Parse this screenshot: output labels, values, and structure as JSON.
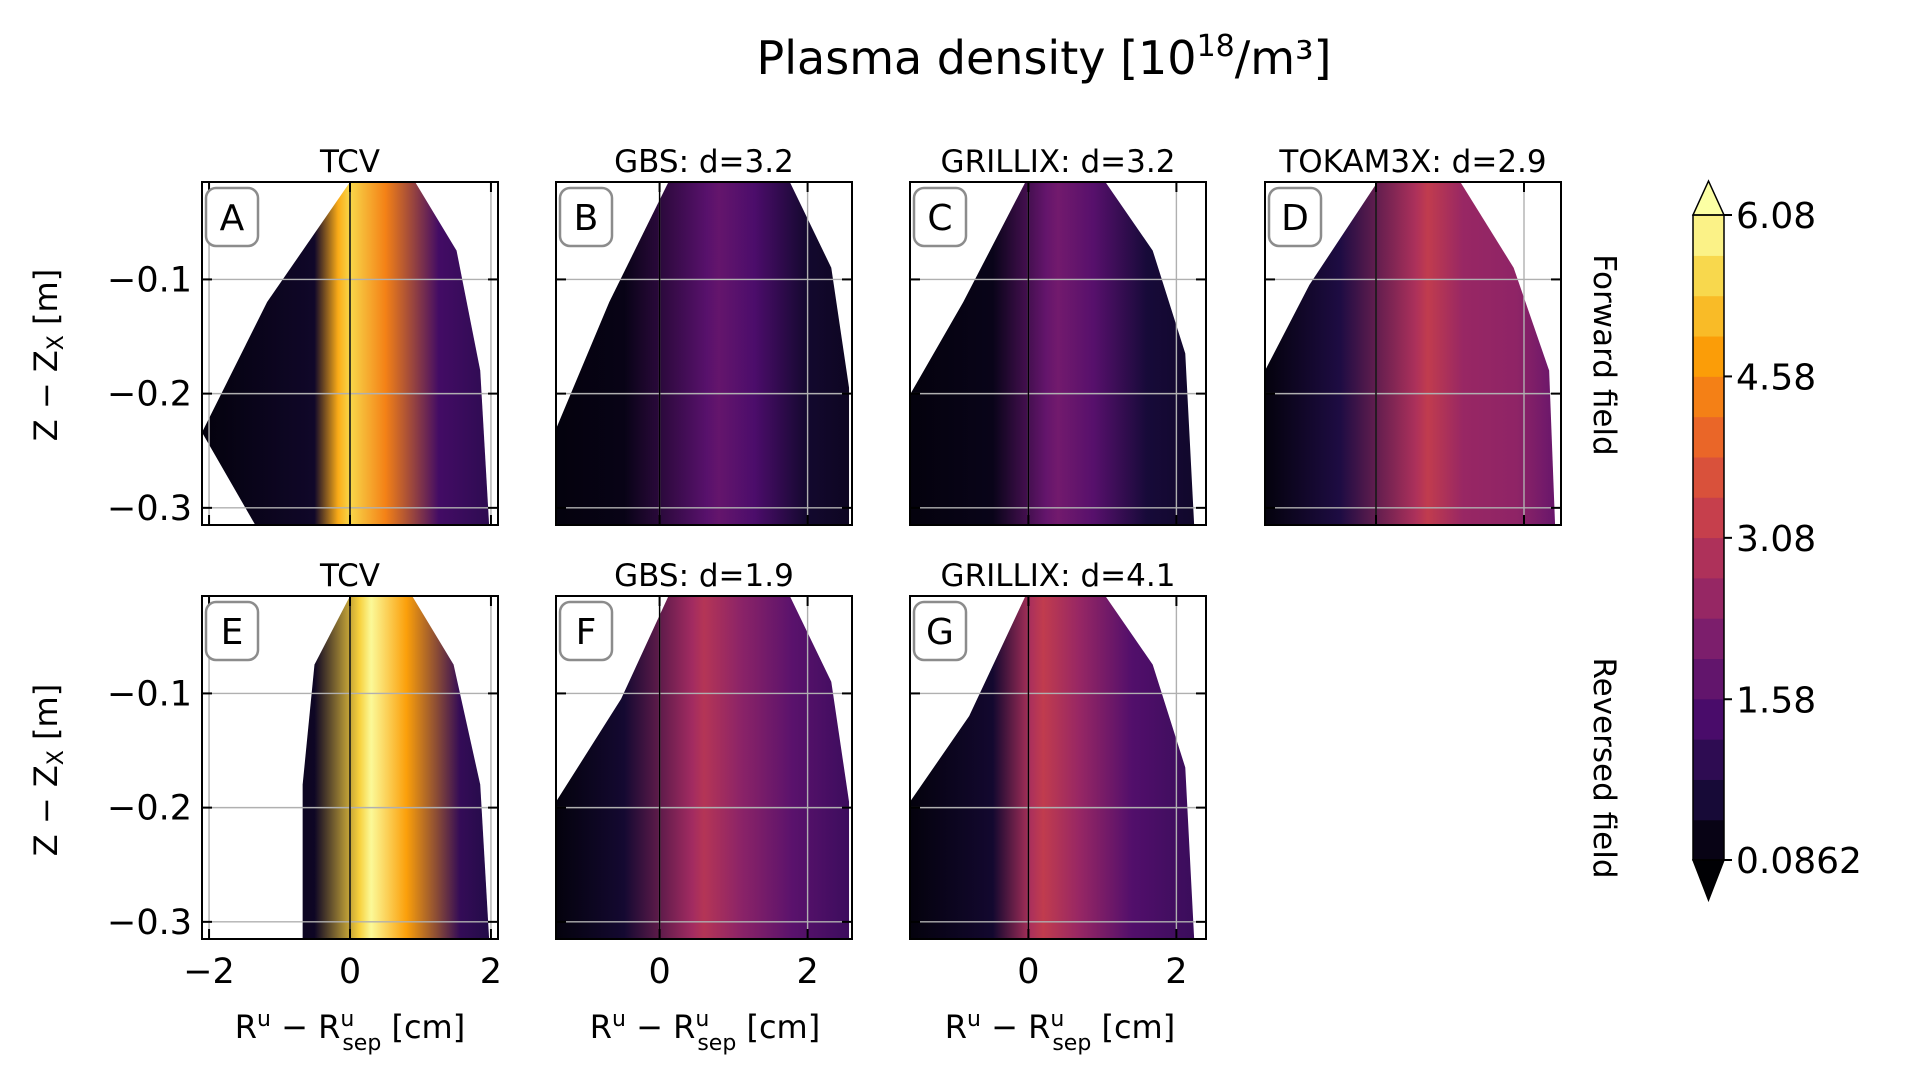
{
  "figure": {
    "title_main": "Plasma density [10",
    "title_exp": "18",
    "title_tail": "/m³]",
    "xlabel_main": "R",
    "xlabel_sup": "u",
    "xlabel_mid": " − R",
    "xlabel_sup2": "u",
    "xlabel_sub": "sep",
    "xlabel_unit": " [cm]",
    "ylabel_main": "Z − Z",
    "ylabel_sub": "X",
    "ylabel_unit": " [m]",
    "row_labels": [
      "Forward field",
      "Reversed field"
    ]
  },
  "colorbar": {
    "ticks": [
      "6.08",
      "4.58",
      "3.08",
      "1.58",
      "0.0862"
    ],
    "tick_values": [
      6.08,
      4.58,
      3.08,
      1.58,
      0.0862
    ],
    "vmin": 0.0862,
    "vmax": 6.08,
    "levels": 16,
    "extend": "both",
    "colormap": [
      "#000004",
      "#1b0c41",
      "#4a0c6b",
      "#781c6d",
      "#a52c60",
      "#cf4446",
      "#ed6925",
      "#fb9b06",
      "#f7d13d",
      "#fcffa4"
    ]
  },
  "chart_data": [
    {
      "type": "heatmap",
      "panel": "A",
      "title": "TCV",
      "row": "Forward field",
      "ylim": [
        -0.32,
        -0.015
      ],
      "yticks": [
        "−0.1",
        "−0.2",
        "−0.3"
      ],
      "xlim": [
        -2.1,
        2.1
      ],
      "xticks": [
        "−2",
        "0",
        "2"
      ],
      "separatrix_x": 0,
      "peak_value": 5.5,
      "peak_x": 0.0,
      "background_value": 1.2
    },
    {
      "type": "heatmap",
      "panel": "B",
      "title": "GBS: d=3.2",
      "row": "Forward field",
      "ylim": [
        -0.32,
        -0.015
      ],
      "xlim": [
        -1.4,
        2.6
      ],
      "xticks": [
        "0",
        "2"
      ],
      "separatrix_x": 0,
      "peak_value": 1.8,
      "peak_x": 0.8,
      "background_value": 0.5
    },
    {
      "type": "heatmap",
      "panel": "C",
      "title": "GRILLIX: d=3.2",
      "row": "Forward field",
      "ylim": [
        -0.32,
        -0.015
      ],
      "xlim": [
        -1.6,
        2.4
      ],
      "xticks": [
        "0",
        "2"
      ],
      "separatrix_x": 0,
      "peak_value": 2.0,
      "peak_x": 0.4,
      "background_value": 0.6
    },
    {
      "type": "heatmap",
      "panel": "D",
      "title": "TOKAM3X: d=2.9",
      "row": "Forward field",
      "ylim": [
        -0.32,
        -0.015
      ],
      "xlim": [
        -1.5,
        2.5
      ],
      "xticks": [
        "0",
        "2"
      ],
      "separatrix_x": 0,
      "peak_value": 3.2,
      "peak_x": 0.7,
      "background_value": 2.2
    },
    {
      "type": "heatmap",
      "panel": "E",
      "title": "TCV",
      "row": "Reversed field",
      "ylim": [
        -0.32,
        -0.015
      ],
      "yticks": [
        "−0.1",
        "−0.2",
        "−0.3"
      ],
      "xlim": [
        -2.1,
        2.1
      ],
      "xticks": [
        "−2",
        "0",
        "2"
      ],
      "separatrix_x": 0,
      "peak_value": 6.0,
      "peak_x": 0.3,
      "background_value": 1.0
    },
    {
      "type": "heatmap",
      "panel": "F",
      "title": "GBS: d=1.9",
      "row": "Reversed field",
      "ylim": [
        -0.32,
        -0.015
      ],
      "xlim": [
        -1.4,
        2.6
      ],
      "xticks": [
        "0",
        "2"
      ],
      "separatrix_x": 0,
      "peak_value": 3.0,
      "peak_x": 0.6,
      "background_value": 1.5
    },
    {
      "type": "heatmap",
      "panel": "G",
      "title": "GRILLIX: d=4.1",
      "row": "Reversed field",
      "ylim": [
        -0.32,
        -0.015
      ],
      "xlim": [
        -1.6,
        2.4
      ],
      "xticks": [
        "0",
        "2"
      ],
      "separatrix_x": 0,
      "peak_value": 3.2,
      "peak_x": 0.2,
      "background_value": 1.4
    }
  ]
}
